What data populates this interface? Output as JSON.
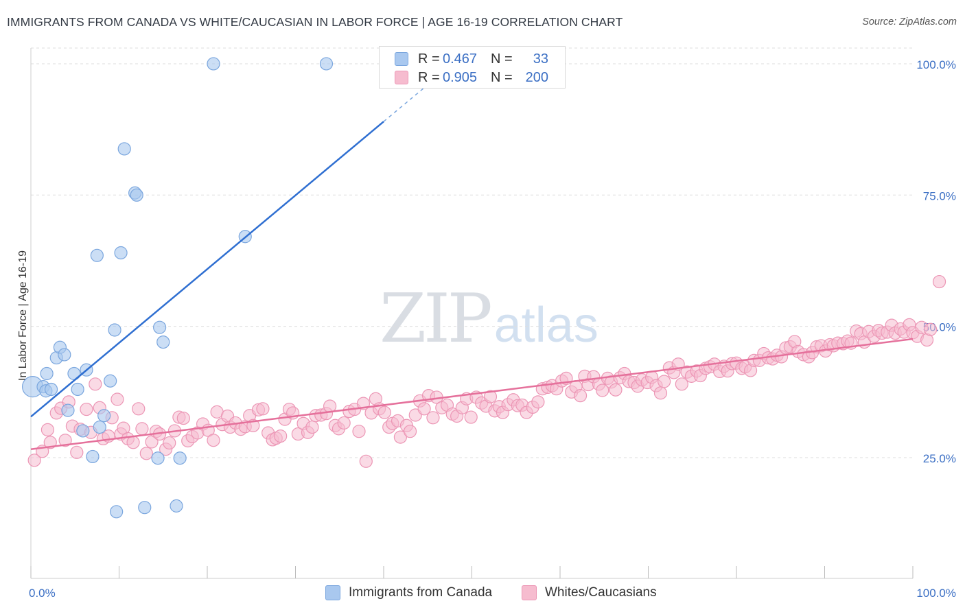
{
  "title": "IMMIGRANTS FROM CANADA VS WHITE/CAUCASIAN IN LABOR FORCE | AGE 16-19 CORRELATION CHART",
  "source": "Source: ZipAtlas.com",
  "watermark": {
    "zip": "ZIP",
    "atlas": "atlas"
  },
  "legend_top": [
    {
      "r_label": "R =",
      "r_value": "0.467",
      "n_label": "N =",
      "n_value": "33"
    },
    {
      "r_label": "R =",
      "r_value": "0.905",
      "n_label": "N =",
      "n_value": "200"
    }
  ],
  "colors": {
    "blue_fill": "#a9c8ef",
    "blue_stroke": "#7aa6de",
    "blue_line": "#2f6fd1",
    "pink_fill": "#f6bccf",
    "pink_stroke": "#ec96b5",
    "pink_line": "#e5709b",
    "tick_label": "#3b6fc4",
    "grid": "#dddddd"
  },
  "chart_data": {
    "type": "scatter",
    "title": "IMMIGRANTS FROM CANADA VS WHITE/CAUCASIAN IN LABOR FORCE | AGE 16-19 CORRELATION CHART",
    "xlabel": "",
    "ylabel": "In Labor Force | Age 16-19",
    "xlim": [
      0,
      100
    ],
    "ylim": [
      2,
      103
    ],
    "x_tick_labels": [
      "0.0%",
      "100.0%"
    ],
    "y_ticks": [
      25,
      50,
      75,
      100
    ],
    "y_tick_labels": [
      "25.0%",
      "50.0%",
      "75.0%",
      "100.0%"
    ],
    "grid": true,
    "legend_placement": "bottom-center",
    "series": [
      {
        "name": "Immigrants from Canada",
        "color": "#a9c8ef",
        "trend": {
          "x": [
            0,
            40
          ],
          "y": [
            32.8,
            89.0
          ],
          "dashed_to": [
            50,
            103
          ]
        },
        "points": [
          [
            0.2,
            38.5,
            2
          ],
          [
            1.4,
            38.5,
            1
          ],
          [
            1.7,
            37.7,
            1
          ],
          [
            1.8,
            41.0,
            1
          ],
          [
            2.3,
            38.0,
            1
          ],
          [
            2.9,
            44.0,
            1
          ],
          [
            3.3,
            46.0,
            1
          ],
          [
            3.8,
            44.6,
            1
          ],
          [
            4.2,
            34.0,
            1
          ],
          [
            4.9,
            41.0,
            1
          ],
          [
            5.3,
            38.0,
            1
          ],
          [
            5.9,
            30.1,
            1
          ],
          [
            6.3,
            41.7,
            1
          ],
          [
            7.0,
            25.2,
            1
          ],
          [
            7.5,
            63.5,
            1
          ],
          [
            7.8,
            30.8,
            1
          ],
          [
            8.3,
            33.0,
            1
          ],
          [
            9.0,
            39.6,
            1
          ],
          [
            9.5,
            49.3,
            1
          ],
          [
            9.7,
            14.7,
            1
          ],
          [
            10.2,
            64.0,
            1
          ],
          [
            10.6,
            83.8,
            1
          ],
          [
            11.8,
            75.4,
            1
          ],
          [
            12.0,
            75.0,
            1
          ],
          [
            12.9,
            15.5,
            1
          ],
          [
            14.4,
            24.9,
            1
          ],
          [
            14.6,
            49.8,
            1
          ],
          [
            15.0,
            47.0,
            1
          ],
          [
            16.9,
            24.9,
            1
          ],
          [
            16.5,
            15.8,
            1
          ],
          [
            20.7,
            100.0,
            1
          ],
          [
            24.3,
            67.1,
            1
          ],
          [
            33.5,
            100.0,
            1
          ]
        ]
      },
      {
        "name": "Whites/Caucasians",
        "color": "#f6bccf",
        "trend": {
          "x": [
            0,
            100
          ],
          "y": [
            26.6,
            47.6
          ]
        },
        "points": [
          [
            0.4,
            24.5
          ],
          [
            1.3,
            26.2
          ],
          [
            1.9,
            30.3
          ],
          [
            2.2,
            27.9
          ],
          [
            2.9,
            33.5
          ],
          [
            3.4,
            34.4
          ],
          [
            3.9,
            28.3
          ],
          [
            4.3,
            35.6
          ],
          [
            4.7,
            31.0
          ],
          [
            5.2,
            26.0
          ],
          [
            5.6,
            30.4
          ],
          [
            6.3,
            34.2
          ],
          [
            6.8,
            29.8
          ],
          [
            7.3,
            39.0
          ],
          [
            7.8,
            34.5
          ],
          [
            8.2,
            28.6
          ],
          [
            8.8,
            29.1
          ],
          [
            9.2,
            32.6
          ],
          [
            9.8,
            36.1
          ],
          [
            10.2,
            29.5
          ],
          [
            10.5,
            30.6
          ],
          [
            11.0,
            28.6
          ],
          [
            11.6,
            27.9
          ],
          [
            12.2,
            34.3
          ],
          [
            12.6,
            30.5
          ],
          [
            13.1,
            25.8
          ],
          [
            13.7,
            28.0
          ],
          [
            14.2,
            30.0
          ],
          [
            14.6,
            29.5
          ],
          [
            15.3,
            26.6
          ],
          [
            15.7,
            27.8
          ],
          [
            16.3,
            30.1
          ],
          [
            16.8,
            32.7
          ],
          [
            17.3,
            32.5
          ],
          [
            17.8,
            28.2
          ],
          [
            18.3,
            29.0
          ],
          [
            18.9,
            29.7
          ],
          [
            19.5,
            31.4
          ],
          [
            20.1,
            30.2
          ],
          [
            20.7,
            28.3
          ],
          [
            21.1,
            33.7
          ],
          [
            21.7,
            31.3
          ],
          [
            22.3,
            32.9
          ],
          [
            22.6,
            30.8
          ],
          [
            23.2,
            31.6
          ],
          [
            23.8,
            30.4
          ],
          [
            24.3,
            30.9
          ],
          [
            24.8,
            33.0
          ],
          [
            25.2,
            31.1
          ],
          [
            25.8,
            34.1
          ],
          [
            26.3,
            34.3
          ],
          [
            26.9,
            29.7
          ],
          [
            27.4,
            28.4
          ],
          [
            27.8,
            28.7
          ],
          [
            28.3,
            29.1
          ],
          [
            28.8,
            32.3
          ],
          [
            29.3,
            34.2
          ],
          [
            29.7,
            33.5
          ],
          [
            30.3,
            29.5
          ],
          [
            30.9,
            31.5
          ],
          [
            31.4,
            29.8
          ],
          [
            31.9,
            30.8
          ],
          [
            32.3,
            33.0
          ],
          [
            32.9,
            33.1
          ],
          [
            33.5,
            33.4
          ],
          [
            33.9,
            34.8
          ],
          [
            34.5,
            31.1
          ],
          [
            34.9,
            30.5
          ],
          [
            35.5,
            31.6
          ],
          [
            36.1,
            33.8
          ],
          [
            36.7,
            34.2
          ],
          [
            37.2,
            30.0
          ],
          [
            37.7,
            35.3
          ],
          [
            38.0,
            24.3
          ],
          [
            38.6,
            33.5
          ],
          [
            39.1,
            36.2
          ],
          [
            39.5,
            34.3
          ],
          [
            40.1,
            33.6
          ],
          [
            40.6,
            30.8
          ],
          [
            41.0,
            31.5
          ],
          [
            41.6,
            32.0
          ],
          [
            41.9,
            28.9
          ],
          [
            42.6,
            31.1
          ],
          [
            43.0,
            30.0
          ],
          [
            43.6,
            33.1
          ],
          [
            44.1,
            35.8
          ],
          [
            44.6,
            34.3
          ],
          [
            45.1,
            36.8
          ],
          [
            45.6,
            32.6
          ],
          [
            46.0,
            36.5
          ],
          [
            46.6,
            34.5
          ],
          [
            47.2,
            35.0
          ],
          [
            47.8,
            33.3
          ],
          [
            48.3,
            32.9
          ],
          [
            48.9,
            34.5
          ],
          [
            49.4,
            36.2
          ],
          [
            49.9,
            32.7
          ],
          [
            50.5,
            36.5
          ],
          [
            51.1,
            35.4
          ],
          [
            51.6,
            34.8
          ],
          [
            52.1,
            36.6
          ],
          [
            52.6,
            33.9
          ],
          [
            53.1,
            34.7
          ],
          [
            53.5,
            33.6
          ],
          [
            54.1,
            35.1
          ],
          [
            54.7,
            36.0
          ],
          [
            55.2,
            34.9
          ],
          [
            55.7,
            35.0
          ],
          [
            56.2,
            33.6
          ],
          [
            56.9,
            34.6
          ],
          [
            57.5,
            35.6
          ],
          [
            58.0,
            38.1
          ],
          [
            58.6,
            38.4
          ],
          [
            59.1,
            38.7
          ],
          [
            59.6,
            38.1
          ],
          [
            60.2,
            39.6
          ],
          [
            60.7,
            40.1
          ],
          [
            61.3,
            37.5
          ],
          [
            61.8,
            38.5
          ],
          [
            62.3,
            36.8
          ],
          [
            62.8,
            40.5
          ],
          [
            63.2,
            38.9
          ],
          [
            63.8,
            40.4
          ],
          [
            64.4,
            39.0
          ],
          [
            64.8,
            37.8
          ],
          [
            65.4,
            40.1
          ],
          [
            65.8,
            39.4
          ],
          [
            66.3,
            37.9
          ],
          [
            66.8,
            40.2
          ],
          [
            67.3,
            41.0
          ],
          [
            67.8,
            39.5
          ],
          [
            68.4,
            39.3
          ],
          [
            68.8,
            38.6
          ],
          [
            69.3,
            39.8
          ],
          [
            69.9,
            39.3
          ],
          [
            70.4,
            40.3
          ],
          [
            70.9,
            38.7
          ],
          [
            71.4,
            37.3
          ],
          [
            71.8,
            39.5
          ],
          [
            72.4,
            42.1
          ],
          [
            72.9,
            41.2
          ],
          [
            73.4,
            42.8
          ],
          [
            73.8,
            39.0
          ],
          [
            74.4,
            41.3
          ],
          [
            74.9,
            40.5
          ],
          [
            75.5,
            41.5
          ],
          [
            75.9,
            40.6
          ],
          [
            76.5,
            42.0
          ],
          [
            77.0,
            42.3
          ],
          [
            77.5,
            42.8
          ],
          [
            78.1,
            41.4
          ],
          [
            78.6,
            42.4
          ],
          [
            79.0,
            41.5
          ],
          [
            79.5,
            42.9
          ],
          [
            80.0,
            43.0
          ],
          [
            80.6,
            42.0
          ],
          [
            81.0,
            42.3
          ],
          [
            81.6,
            41.6
          ],
          [
            82.0,
            43.5
          ],
          [
            82.6,
            43.5
          ],
          [
            83.1,
            44.8
          ],
          [
            83.6,
            44.0
          ],
          [
            84.1,
            43.8
          ],
          [
            84.6,
            44.5
          ],
          [
            85.1,
            44.2
          ],
          [
            85.6,
            45.9
          ],
          [
            86.1,
            46.1
          ],
          [
            86.6,
            47.1
          ],
          [
            87.0,
            45.2
          ],
          [
            87.6,
            44.6
          ],
          [
            88.2,
            44.2
          ],
          [
            88.6,
            45.0
          ],
          [
            89.1,
            46.1
          ],
          [
            89.6,
            46.3
          ],
          [
            90.1,
            45.3
          ],
          [
            90.6,
            46.5
          ],
          [
            91.0,
            46.3
          ],
          [
            91.5,
            46.8
          ],
          [
            92.1,
            46.7
          ],
          [
            92.6,
            47.2
          ],
          [
            93.0,
            46.8
          ],
          [
            93.6,
            49.1
          ],
          [
            94.1,
            48.6
          ],
          [
            94.5,
            47.0
          ],
          [
            95.0,
            49.0
          ],
          [
            95.6,
            48.1
          ],
          [
            96.1,
            49.2
          ],
          [
            96.5,
            48.7
          ],
          [
            97.1,
            48.9
          ],
          [
            97.6,
            50.2
          ],
          [
            98.0,
            48.7
          ],
          [
            98.6,
            49.5
          ],
          [
            99.0,
            48.9
          ],
          [
            99.6,
            50.3
          ],
          [
            100.0,
            48.8
          ],
          [
            100.5,
            48.1
          ],
          [
            101.0,
            49.8
          ],
          [
            101.6,
            47.4
          ],
          [
            102.0,
            49.4
          ],
          [
            103.0,
            58.5
          ]
        ]
      }
    ]
  }
}
